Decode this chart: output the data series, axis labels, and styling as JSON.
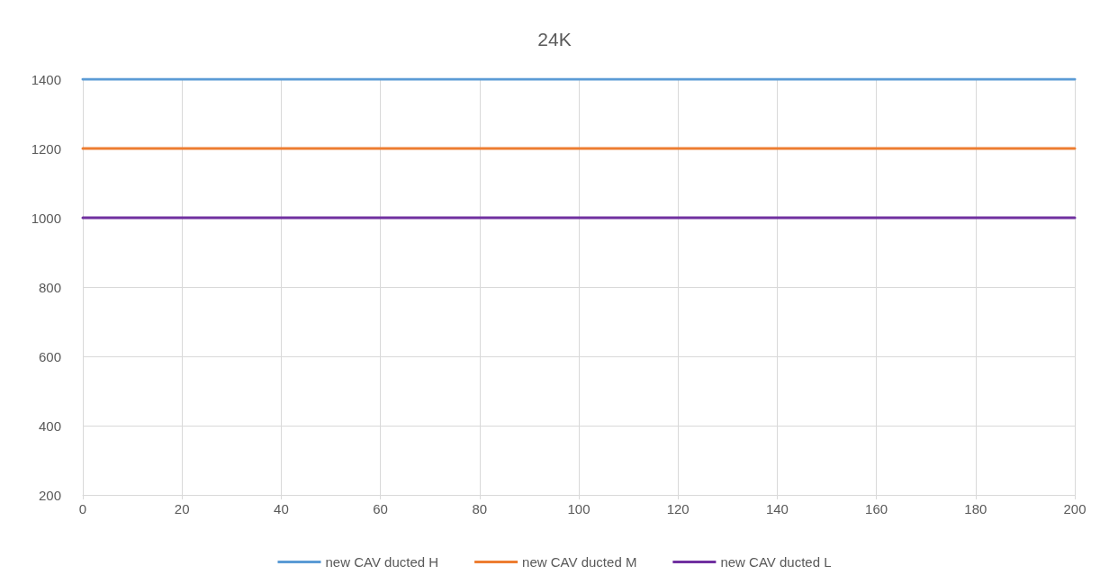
{
  "chart_data": {
    "type": "line",
    "title": "24K",
    "x": [
      0,
      200
    ],
    "series": [
      {
        "name": "new CAV ducted H",
        "color": "#5b9bd5",
        "values": [
          1400,
          1400
        ]
      },
      {
        "name": "new CAV ducted M",
        "color": "#ed7d31",
        "values": [
          1200,
          1200
        ]
      },
      {
        "name": "new CAV ducted L",
        "color": "#7030a0",
        "values": [
          1000,
          1000
        ]
      }
    ],
    "xlim": [
      0,
      200
    ],
    "xticks": [
      0,
      20,
      40,
      60,
      80,
      100,
      120,
      140,
      160,
      180,
      200
    ],
    "ylim": [
      200,
      1400
    ],
    "yticks": [
      200,
      400,
      600,
      800,
      1000,
      1200,
      1400
    ],
    "grid": true,
    "legend": "bottom",
    "marker": "none",
    "line_style": "solid"
  }
}
